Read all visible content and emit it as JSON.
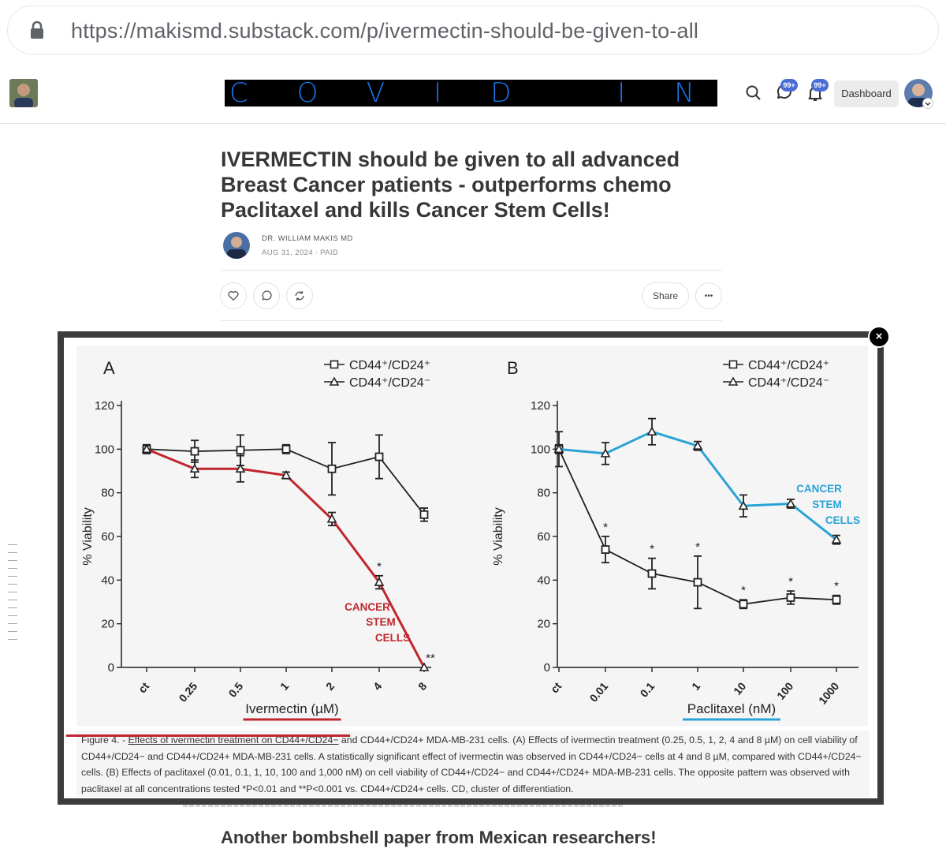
{
  "browser": {
    "url": "https://makismd.substack.com/p/ivermectin-should-be-given-to-all"
  },
  "header": {
    "logo_text": "COVID INT≡L",
    "badge_chat": "99+",
    "badge_bell": "99+",
    "dashboard_label": "Dashboard"
  },
  "post": {
    "title": "IVERMECTIN should be given to all advanced Breast Cancer patients - outperforms chemo Paclitaxel and kills Cancer Stem Cells!",
    "author": "DR. WILLIAM MAKIS MD",
    "date": "AUG 31, 2024 ∙ PAID",
    "share_label": "Share",
    "more_label": "•••"
  },
  "figure": {
    "close_label": "×",
    "caption_underlined": "Effects of ivermectin treatment on CD44+/CD24−",
    "caption_prefix": "Figure 4. - ",
    "caption_rest": " and CD44+/CD24+ MDA-MB-231 cells. (A) Effects of ivermectin treatment (0.25, 0.5, 1, 2, 4 and 8 µM) on cell viability of CD44+/CD24− and CD44+/CD24+ MDA-MB-231 cells. A statistically significant effect of ivermectin was observed in CD44+/CD24− cells at 4 and 8 µM, compared with CD44+/CD24− cells. (B) Effects of paclitaxel (0.01, 0.1, 1, 10, 100 and 1,000 nM) on cell viability of CD44+/CD24− and CD44+/CD24+ MDA-MB-231 cells. The opposite pattern was observed with paclitaxel at all concentrations tested *P<0.01 and **P<0.001 vs. CD44+/CD24+ cells. CD, cluster of differentiation."
  },
  "footer_text": "Another bombshell paper from Mexican researchers!",
  "colors": {
    "red": "#c0262d",
    "blue": "#29a3d6",
    "black": "#1f1f1f"
  },
  "chart_data": [
    {
      "type": "line",
      "panel": "A",
      "categories": [
        "ct",
        "0.25",
        "0.5",
        "1",
        "2",
        "4",
        "8"
      ],
      "xlabel": "Ivermectin (µM)",
      "ylabel": "% Viability",
      "ylim": [
        0,
        120
      ],
      "yticks": [
        0,
        20,
        40,
        60,
        80,
        100,
        120
      ],
      "legend": [
        "CD44⁺/CD24⁺",
        "CD44⁺/CD24⁻"
      ],
      "series": [
        {
          "name": "CD44+/CD24+",
          "marker": "square",
          "color": "#1f1f1f",
          "values": [
            100,
            99,
            99.5,
            100,
            91,
            96.5,
            70
          ],
          "errors": [
            2,
            5,
            7,
            2,
            12,
            10,
            3
          ]
        },
        {
          "name": "CD44+/CD24-",
          "marker": "triangle",
          "color": "#c0262d",
          "values": [
            100,
            91,
            91,
            88,
            68,
            39,
            0
          ],
          "errors": [
            2,
            4,
            6,
            1.5,
            3,
            3,
            0
          ]
        }
      ],
      "stars": [
        {
          "index": 5,
          "text": "*"
        },
        {
          "index": 6,
          "text": "**"
        }
      ],
      "annotation": [
        "CANCER",
        "STEM",
        "CELLS"
      ],
      "annotation_color": "#c0262d"
    },
    {
      "type": "line",
      "panel": "B",
      "categories": [
        "ct",
        "0.01",
        "0.1",
        "1",
        "10",
        "100",
        "1000"
      ],
      "xlabel": "Paclitaxel (nM)",
      "ylabel": "% Viability",
      "ylim": [
        0,
        120
      ],
      "yticks": [
        0,
        20,
        40,
        60,
        80,
        100,
        120
      ],
      "legend": [
        "CD44⁺/CD24⁺",
        "CD44⁺/CD24⁻"
      ],
      "series": [
        {
          "name": "CD44+/CD24+",
          "marker": "square",
          "color": "#1f1f1f",
          "values": [
            100,
            54,
            43,
            39,
            29,
            32,
            31
          ],
          "errors": [
            8,
            6,
            7,
            12,
            2,
            3,
            2
          ]
        },
        {
          "name": "CD44+/CD24-",
          "marker": "triangle",
          "color": "#29a3d6",
          "values": [
            100,
            98,
            108,
            101.5,
            74,
            75,
            58.5
          ],
          "errors": [
            2,
            5,
            6,
            2,
            5,
            2,
            2
          ]
        }
      ],
      "stars": [
        {
          "index": 1,
          "text": "*"
        },
        {
          "index": 2,
          "text": "*"
        },
        {
          "index": 3,
          "text": "*"
        },
        {
          "index": 4,
          "text": "*"
        },
        {
          "index": 5,
          "text": "*"
        },
        {
          "index": 6,
          "text": "*"
        }
      ],
      "annotation": [
        "CANCER",
        "STEM",
        "CELLS"
      ],
      "annotation_color": "#29a3d6"
    }
  ]
}
